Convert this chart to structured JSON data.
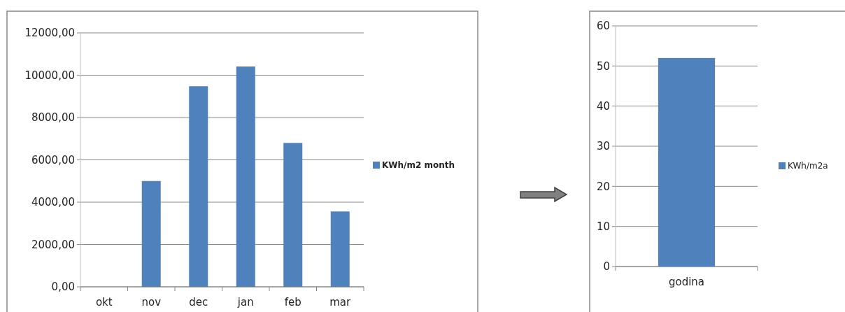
{
  "chart_data": [
    {
      "type": "bar",
      "categories": [
        "okt",
        "nov",
        "dec",
        "jan",
        "feb",
        "mar"
      ],
      "series": [
        {
          "name": "KWh/m2 month",
          "color": "#4f81bd",
          "values": [
            0,
            5000,
            9480,
            10410,
            6800,
            3560
          ]
        }
      ],
      "ylim": [
        0,
        12000
      ],
      "yticks": [
        {
          "value": 0,
          "label": "0,00"
        },
        {
          "value": 2000,
          "label": "2000,00"
        },
        {
          "value": 4000,
          "label": "4000,00"
        },
        {
          "value": 6000,
          "label": "6000,00"
        },
        {
          "value": 8000,
          "label": "8000,00"
        },
        {
          "value": 10000,
          "label": "10000,00"
        },
        {
          "value": 12000,
          "label": "12000,00"
        }
      ],
      "grid": "y",
      "legend": "right"
    },
    {
      "type": "bar",
      "categories": [
        "godina"
      ],
      "series": [
        {
          "name": "KWh/m2a",
          "color": "#4f81bd",
          "values": [
            52
          ]
        }
      ],
      "ylim": [
        0,
        60
      ],
      "yticks": [
        0,
        10,
        20,
        30,
        40,
        50,
        60
      ],
      "grid": "y",
      "legend": "right"
    }
  ]
}
